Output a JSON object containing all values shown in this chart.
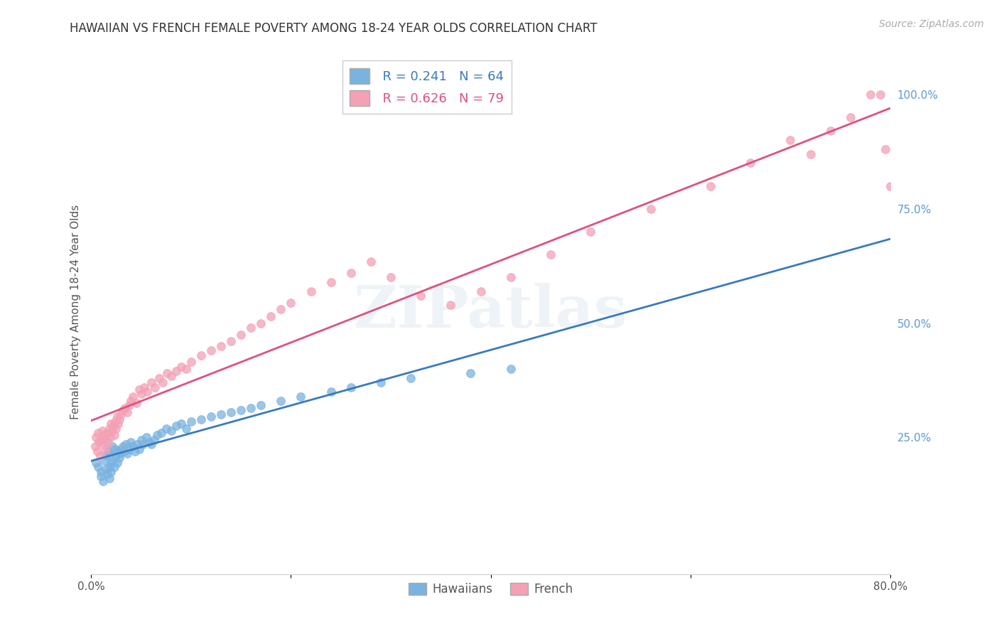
{
  "title": "HAWAIIAN VS FRENCH FEMALE POVERTY AMONG 18-24 YEAR OLDS CORRELATION CHART",
  "source": "Source: ZipAtlas.com",
  "ylabel": "Female Poverty Among 18-24 Year Olds",
  "xlim": [
    0.0,
    0.8
  ],
  "ylim": [
    -0.05,
    1.1
  ],
  "xticks": [
    0.0,
    0.2,
    0.4,
    0.6,
    0.8
  ],
  "xticklabels": [
    "0.0%",
    "",
    "",
    "",
    "80.0%"
  ],
  "yticks_right": [
    0.25,
    0.5,
    0.75,
    1.0
  ],
  "yticklabels_right": [
    "25.0%",
    "50.0%",
    "75.0%",
    "100.0%"
  ],
  "hawaiian_color": "#7ab3e0",
  "french_color": "#f4a0b5",
  "hawaiian_line_color": "#3a7abf",
  "french_line_color": "#e05080",
  "legend_R_hawaiian": "R = 0.241",
  "legend_N_hawaiian": "N = 64",
  "legend_R_french": "R = 0.626",
  "legend_N_french": "N = 79",
  "watermark": "ZIPatlas",
  "haw_x": [
    0.005,
    0.007,
    0.01,
    0.01,
    0.012,
    0.013,
    0.015,
    0.015,
    0.016,
    0.017,
    0.018,
    0.018,
    0.019,
    0.02,
    0.02,
    0.021,
    0.022,
    0.023,
    0.024,
    0.025,
    0.026,
    0.027,
    0.028,
    0.029,
    0.03,
    0.032,
    0.033,
    0.035,
    0.036,
    0.038,
    0.04,
    0.042,
    0.044,
    0.046,
    0.048,
    0.05,
    0.052,
    0.055,
    0.058,
    0.06,
    0.063,
    0.066,
    0.07,
    0.075,
    0.08,
    0.085,
    0.09,
    0.095,
    0.1,
    0.11,
    0.12,
    0.13,
    0.14,
    0.15,
    0.16,
    0.17,
    0.19,
    0.21,
    0.24,
    0.26,
    0.29,
    0.32,
    0.38,
    0.42
  ],
  "haw_y": [
    0.195,
    0.185,
    0.175,
    0.165,
    0.155,
    0.2,
    0.21,
    0.18,
    0.17,
    0.22,
    0.185,
    0.16,
    0.215,
    0.195,
    0.175,
    0.23,
    0.2,
    0.185,
    0.225,
    0.21,
    0.195,
    0.22,
    0.205,
    0.215,
    0.225,
    0.23,
    0.22,
    0.235,
    0.215,
    0.225,
    0.24,
    0.23,
    0.22,
    0.235,
    0.225,
    0.245,
    0.235,
    0.25,
    0.24,
    0.235,
    0.245,
    0.255,
    0.26,
    0.27,
    0.265,
    0.275,
    0.28,
    0.27,
    0.285,
    0.29,
    0.295,
    0.3,
    0.305,
    0.31,
    0.315,
    0.32,
    0.33,
    0.34,
    0.35,
    0.36,
    0.37,
    0.38,
    0.39,
    0.4
  ],
  "fre_x": [
    0.004,
    0.005,
    0.006,
    0.007,
    0.008,
    0.009,
    0.01,
    0.011,
    0.012,
    0.013,
    0.014,
    0.015,
    0.016,
    0.017,
    0.018,
    0.019,
    0.02,
    0.021,
    0.022,
    0.023,
    0.024,
    0.025,
    0.026,
    0.027,
    0.028,
    0.03,
    0.032,
    0.034,
    0.036,
    0.038,
    0.04,
    0.042,
    0.045,
    0.048,
    0.05,
    0.053,
    0.056,
    0.06,
    0.064,
    0.068,
    0.072,
    0.076,
    0.08,
    0.085,
    0.09,
    0.095,
    0.1,
    0.11,
    0.12,
    0.13,
    0.14,
    0.15,
    0.16,
    0.17,
    0.18,
    0.19,
    0.2,
    0.22,
    0.24,
    0.26,
    0.28,
    0.3,
    0.33,
    0.36,
    0.39,
    0.42,
    0.46,
    0.5,
    0.56,
    0.62,
    0.66,
    0.7,
    0.72,
    0.74,
    0.76,
    0.78,
    0.79,
    0.795,
    0.8
  ],
  "fre_y": [
    0.23,
    0.25,
    0.22,
    0.26,
    0.24,
    0.21,
    0.245,
    0.265,
    0.235,
    0.255,
    0.245,
    0.225,
    0.26,
    0.24,
    0.27,
    0.25,
    0.28,
    0.265,
    0.275,
    0.255,
    0.285,
    0.27,
    0.295,
    0.28,
    0.29,
    0.3,
    0.31,
    0.315,
    0.305,
    0.32,
    0.33,
    0.34,
    0.325,
    0.355,
    0.345,
    0.36,
    0.35,
    0.37,
    0.36,
    0.38,
    0.37,
    0.39,
    0.385,
    0.395,
    0.405,
    0.4,
    0.415,
    0.43,
    0.44,
    0.45,
    0.46,
    0.475,
    0.49,
    0.5,
    0.515,
    0.53,
    0.545,
    0.57,
    0.59,
    0.61,
    0.635,
    0.6,
    0.56,
    0.54,
    0.57,
    0.6,
    0.65,
    0.7,
    0.75,
    0.8,
    0.85,
    0.9,
    0.87,
    0.92,
    0.95,
    1.0,
    1.0,
    0.88,
    0.8
  ]
}
